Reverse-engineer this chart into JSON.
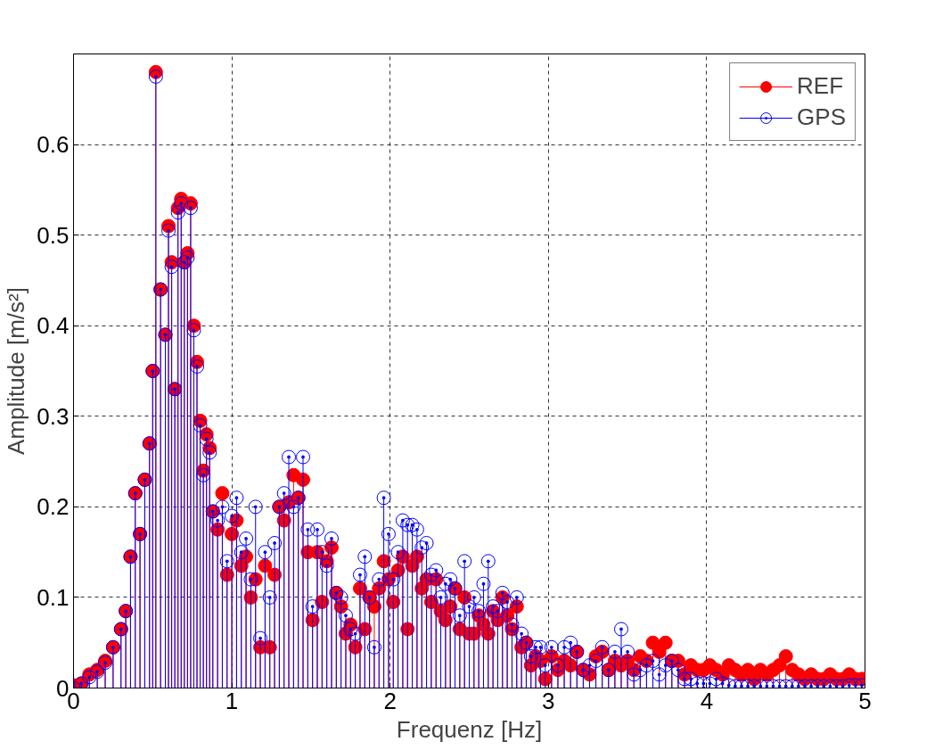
{
  "chart_data": {
    "type": "lollipop",
    "xlabel": "Frequenz [Hz]",
    "ylabel": "Amplitude [m/s²]",
    "x": [
      0,
      0.05,
      0.1,
      0.15,
      0.2,
      0.25,
      0.3,
      0.33,
      0.36,
      0.39,
      0.42,
      0.45,
      0.48,
      0.5,
      0.52,
      0.55,
      0.58,
      0.6,
      0.62,
      0.64,
      0.66,
      0.68,
      0.7,
      0.72,
      0.74,
      0.76,
      0.78,
      0.8,
      0.82,
      0.84,
      0.86,
      0.88,
      0.91,
      0.94,
      0.97,
      1.0,
      1.03,
      1.06,
      1.09,
      1.12,
      1.15,
      1.18,
      1.21,
      1.24,
      1.27,
      1.3,
      1.33,
      1.36,
      1.39,
      1.42,
      1.45,
      1.48,
      1.51,
      1.54,
      1.57,
      1.6,
      1.63,
      1.66,
      1.69,
      1.72,
      1.75,
      1.78,
      1.81,
      1.84,
      1.87,
      1.9,
      1.93,
      1.96,
      1.99,
      2.02,
      2.05,
      2.08,
      2.11,
      2.14,
      2.17,
      2.2,
      2.23,
      2.26,
      2.29,
      2.32,
      2.35,
      2.38,
      2.41,
      2.44,
      2.47,
      2.5,
      2.53,
      2.56,
      2.59,
      2.62,
      2.65,
      2.68,
      2.71,
      2.74,
      2.77,
      2.8,
      2.83,
      2.86,
      2.89,
      2.92,
      2.95,
      2.98,
      3.02,
      3.06,
      3.1,
      3.14,
      3.18,
      3.22,
      3.26,
      3.3,
      3.34,
      3.38,
      3.42,
      3.46,
      3.5,
      3.54,
      3.58,
      3.62,
      3.66,
      3.7,
      3.74,
      3.78,
      3.82,
      3.86,
      3.9,
      3.94,
      3.98,
      4.02,
      4.06,
      4.1,
      4.14,
      4.18,
      4.22,
      4.26,
      4.3,
      4.34,
      4.38,
      4.42,
      4.46,
      4.5,
      4.54,
      4.58,
      4.62,
      4.66,
      4.7,
      4.74,
      4.78,
      4.82,
      4.86,
      4.9,
      4.94,
      4.98
    ],
    "series": [
      {
        "name": "REF",
        "color": "#ff0000",
        "values": [
          0.003,
          0.005,
          0.015,
          0.02,
          0.03,
          0.045,
          0.065,
          0.085,
          0.145,
          0.215,
          0.17,
          0.23,
          0.27,
          0.35,
          0.68,
          0.44,
          0.39,
          0.51,
          0.47,
          0.33,
          0.53,
          0.54,
          0.47,
          0.48,
          0.535,
          0.4,
          0.36,
          0.295,
          0.24,
          0.28,
          0.265,
          0.195,
          0.175,
          0.215,
          0.125,
          0.17,
          0.185,
          0.135,
          0.145,
          0.1,
          0.12,
          0.045,
          0.135,
          0.045,
          0.125,
          0.2,
          0.185,
          0.205,
          0.235,
          0.21,
          0.23,
          0.15,
          0.075,
          0.15,
          0.095,
          0.14,
          0.155,
          0.105,
          0.09,
          0.06,
          0.07,
          0.045,
          0.11,
          0.065,
          0.1,
          0.09,
          0.11,
          0.14,
          0.12,
          0.095,
          0.13,
          0.145,
          0.065,
          0.135,
          0.145,
          0.11,
          0.12,
          0.095,
          0.12,
          0.085,
          0.075,
          0.09,
          0.11,
          0.065,
          0.1,
          0.06,
          0.06,
          0.08,
          0.07,
          0.06,
          0.085,
          0.075,
          0.1,
          0.08,
          0.065,
          0.09,
          0.045,
          0.05,
          0.025,
          0.035,
          0.03,
          0.01,
          0.035,
          0.02,
          0.03,
          0.025,
          0.04,
          0.02,
          0.015,
          0.035,
          0.04,
          0.02,
          0.03,
          0.025,
          0.03,
          0.02,
          0.035,
          0.03,
          0.05,
          0.04,
          0.05,
          0.03,
          0.03,
          0.015,
          0.025,
          0.02,
          0.02,
          0.025,
          0.02,
          0.015,
          0.025,
          0.02,
          0.015,
          0.02,
          0.01,
          0.02,
          0.015,
          0.02,
          0.025,
          0.035,
          0.02,
          0.015,
          0.01,
          0.015,
          0.01,
          0.01,
          0.015,
          0.01,
          0.01,
          0.015,
          0.01,
          0.01
        ]
      },
      {
        "name": "GPS",
        "color": "#0000ff",
        "values": [
          0,
          0.005,
          0.012,
          0.018,
          0.028,
          0.045,
          0.065,
          0.085,
          0.145,
          0.215,
          0.17,
          0.23,
          0.27,
          0.35,
          0.675,
          0.44,
          0.39,
          0.505,
          0.465,
          0.33,
          0.525,
          0.535,
          0.47,
          0.475,
          0.53,
          0.395,
          0.355,
          0.29,
          0.235,
          0.275,
          0.26,
          0.195,
          0.185,
          0.2,
          0.14,
          0.19,
          0.21,
          0.15,
          0.165,
          0.12,
          0.2,
          0.055,
          0.15,
          0.1,
          0.16,
          0.2,
          0.215,
          0.255,
          0.2,
          0.21,
          0.255,
          0.175,
          0.09,
          0.175,
          0.15,
          0.135,
          0.165,
          0.105,
          0.1,
          0.08,
          0.065,
          0.06,
          0.125,
          0.145,
          0.1,
          0.045,
          0.12,
          0.21,
          0.17,
          0.12,
          0.15,
          0.185,
          0.18,
          0.18,
          0.175,
          0.155,
          0.16,
          0.125,
          0.13,
          0.1,
          0.115,
          0.12,
          0.11,
          0.08,
          0.14,
          0.09,
          0.1,
          0.085,
          0.115,
          0.14,
          0.09,
          0.085,
          0.105,
          0.095,
          0.07,
          0.1,
          0.06,
          0.05,
          0.035,
          0.045,
          0.045,
          0.025,
          0.045,
          0.025,
          0.045,
          0.05,
          0.04,
          0.02,
          0.025,
          0.03,
          0.045,
          0.02,
          0.04,
          0.065,
          0.04,
          0.015,
          0.02,
          0.025,
          0.03,
          0.015,
          0.025,
          0.03,
          0.02,
          0.01,
          0.01,
          0.005,
          0.005,
          0.005,
          0.01,
          0.005,
          0.003,
          0.002,
          0.002,
          0.002,
          0.002,
          0.002,
          0.002,
          0.002,
          0.002,
          0.002,
          0.002,
          0.002,
          0.002,
          0.002,
          0.002,
          0.002,
          0.002,
          0.002,
          0.002,
          0.003,
          0.003,
          0.003
        ]
      }
    ],
    "xlim": [
      0,
      5
    ],
    "xticks": [
      0,
      1,
      2,
      3,
      4,
      5
    ],
    "ylim": [
      0,
      0.7
    ],
    "yticks": [
      0,
      0.1,
      0.2,
      0.3,
      0.4,
      0.5,
      0.6
    ],
    "grid": true,
    "legend": "top right",
    "marker": "circle"
  }
}
